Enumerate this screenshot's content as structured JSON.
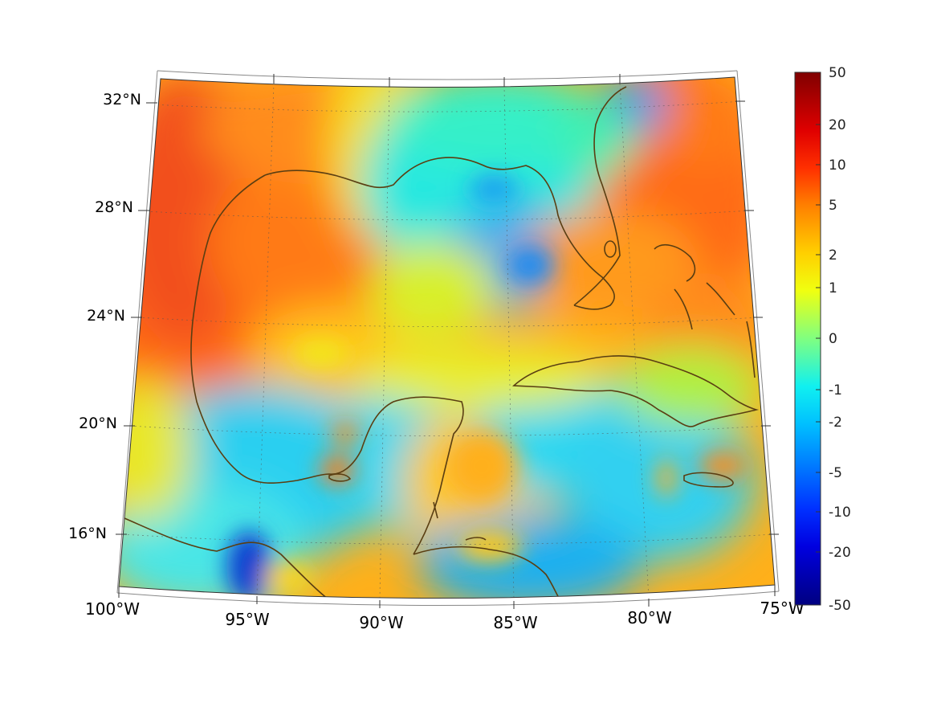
{
  "map": {
    "type": "projected_field_map",
    "region": "Gulf of Mexico / Caribbean",
    "lon_range": [
      -100,
      -75
    ],
    "lat_range": [
      14,
      33
    ],
    "lon_labels": [
      "100°W",
      "95°W",
      "90°W",
      "85°W",
      "80°W",
      "75°W"
    ],
    "lat_labels": [
      "32°N",
      "28°N",
      "24°N",
      "20°N",
      "16°N"
    ],
    "grid": true,
    "coastline_color": "#5a3e12"
  },
  "colorbar": {
    "scale": "symmetric-log",
    "range": [
      -50,
      50
    ],
    "ticks": [
      "50",
      "20",
      "10",
      "5",
      "2",
      "1",
      "0",
      "-1",
      "-2",
      "-5",
      "-10",
      "-20",
      "-50"
    ],
    "colormap": "jet",
    "placement": "right"
  },
  "field_colors": {
    "warm_high": "#e8421a",
    "warm": "#ff8c1a",
    "mid_yellow": "#f2e81c",
    "neutral": "#8cf066",
    "cool": "#1ae6f0",
    "cold": "#1a8cf0",
    "cold_extreme": "#1040d0"
  }
}
